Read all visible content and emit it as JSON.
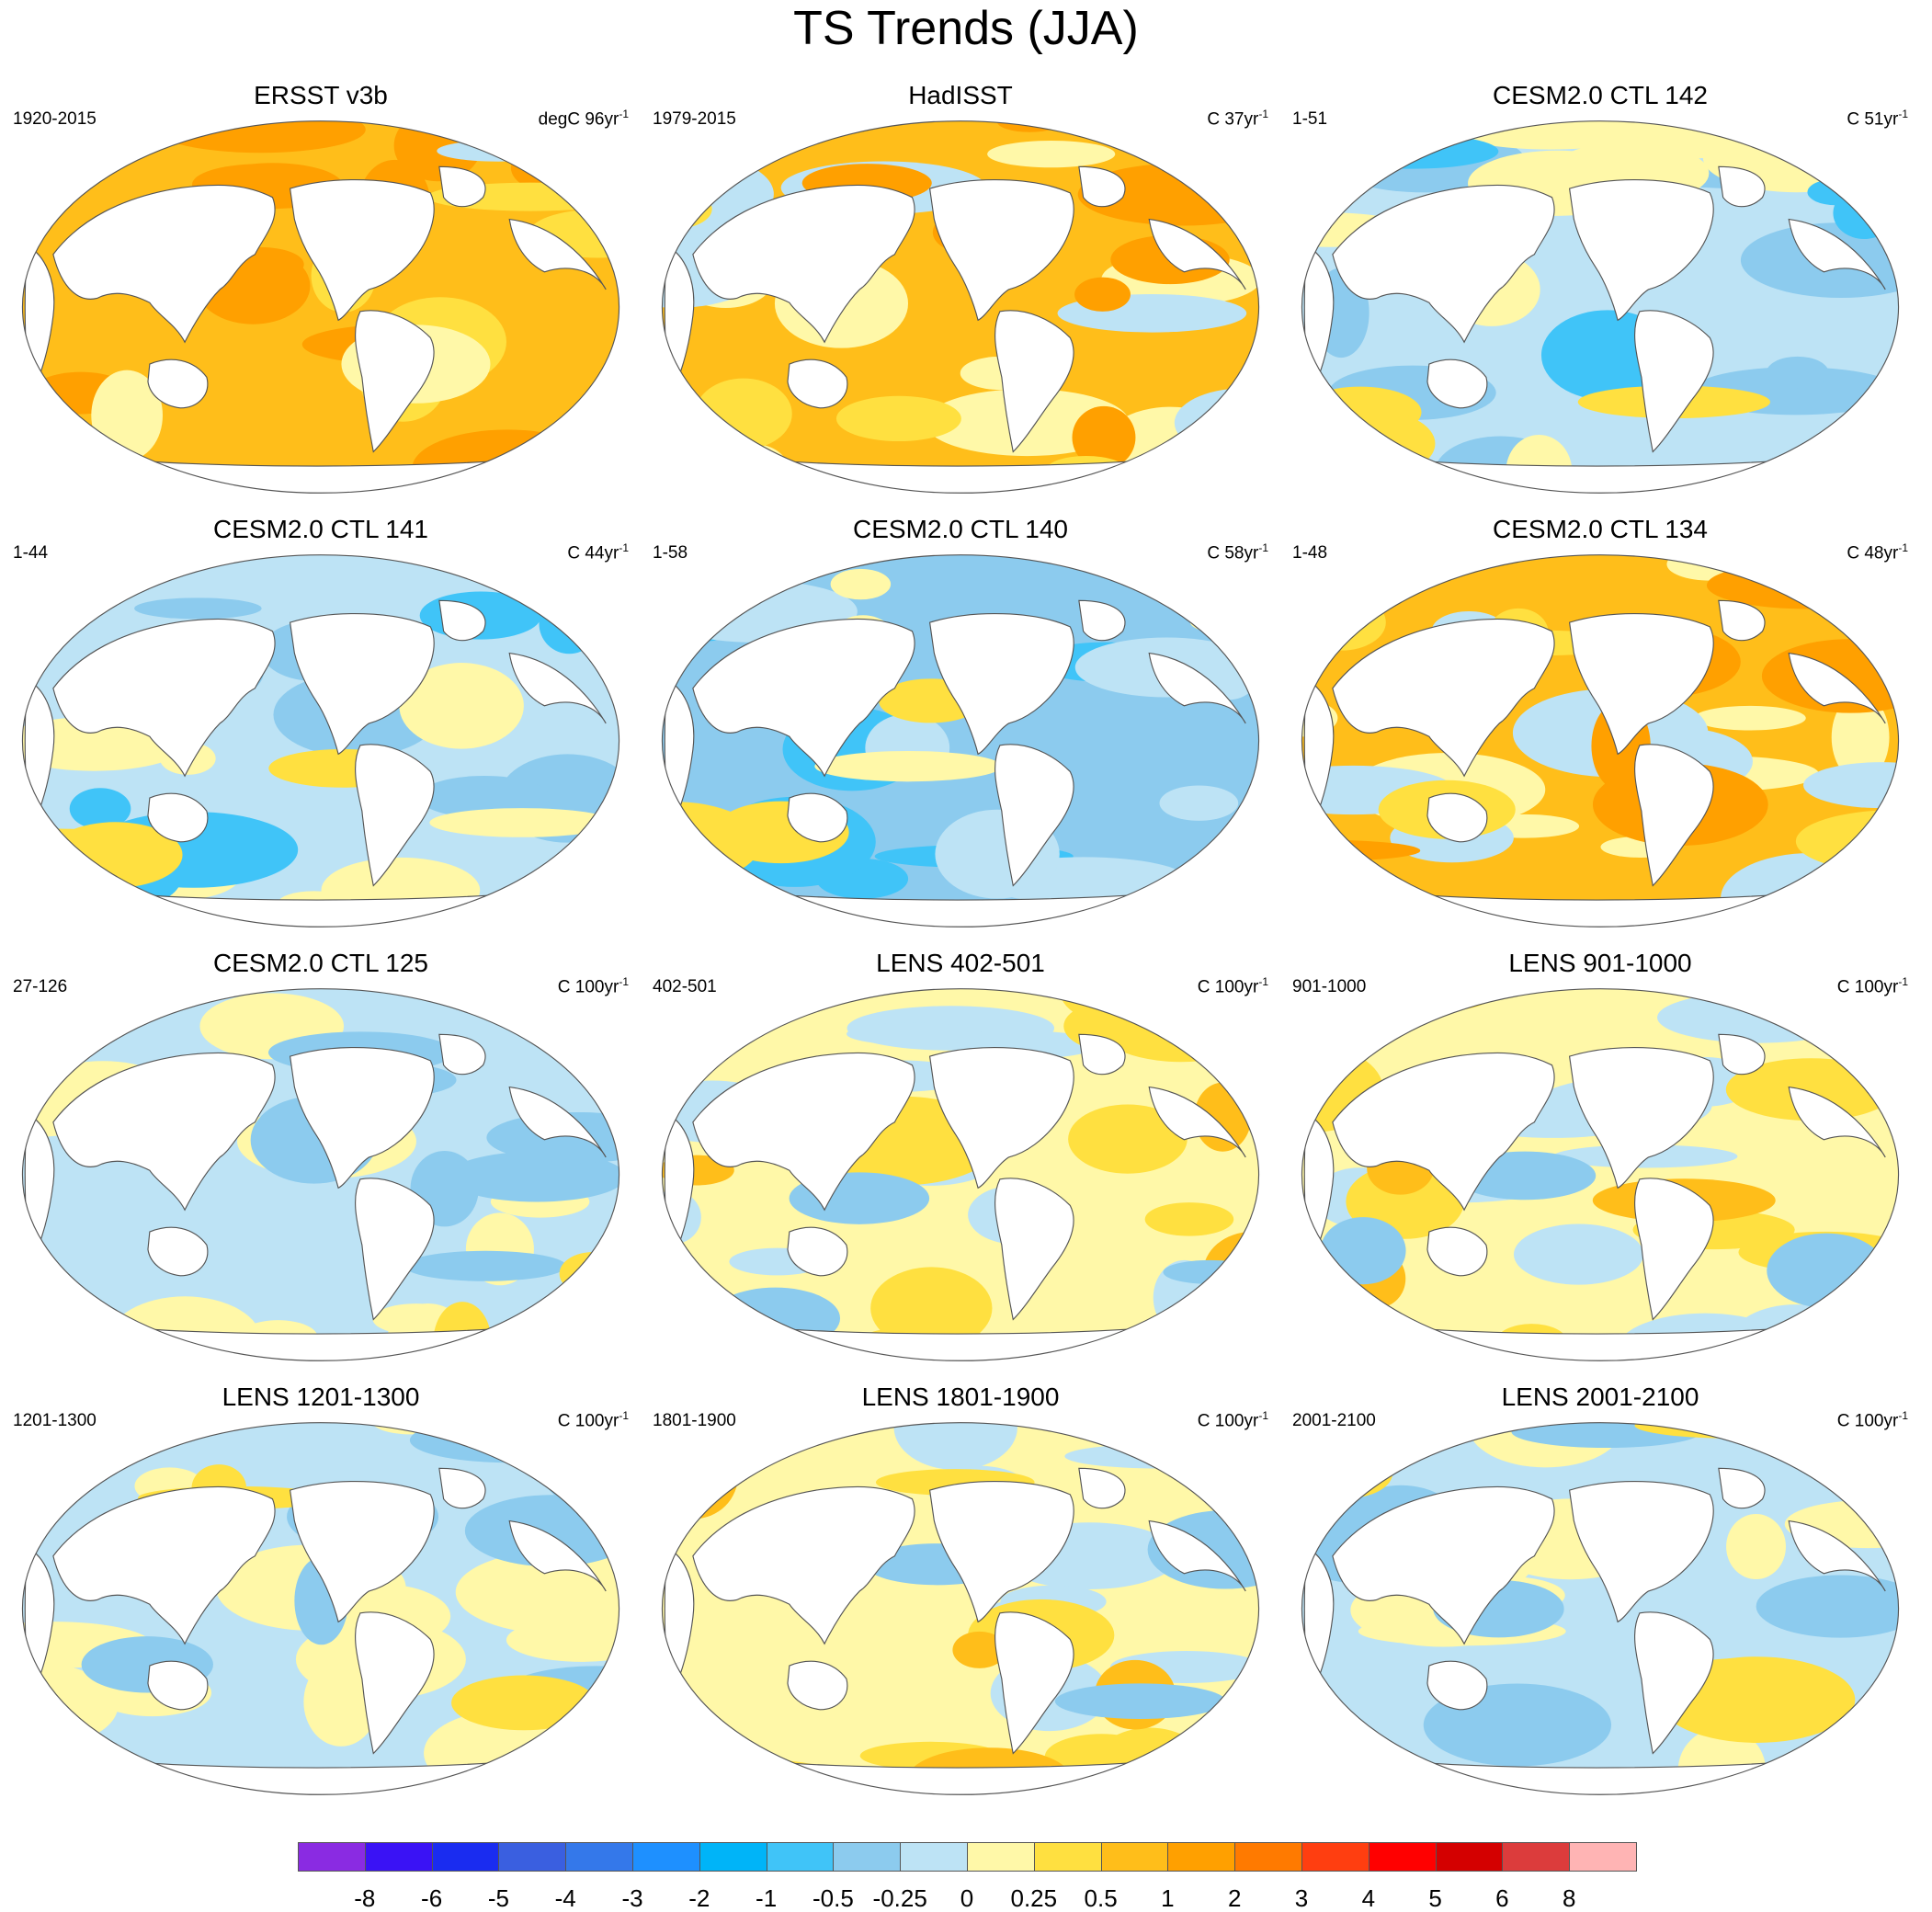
{
  "figure": {
    "title": "TS Trends (JJA)"
  },
  "panels": [
    {
      "title": "ERSST v3b",
      "period": "1920-2015",
      "units": "degC 96yr",
      "exp": "-1",
      "tone": "warm_strong"
    },
    {
      "title": "HadISST",
      "period": "1979-2015",
      "units": "C 37yr",
      "exp": "-1",
      "tone": "warm_mixed"
    },
    {
      "title": "CESM2.0 CTL 142",
      "period": "1-51",
      "units": "C 51yr",
      "exp": "-1",
      "tone": "cool"
    },
    {
      "title": "CESM2.0 CTL 141",
      "period": "1-44",
      "units": "C 44yr",
      "exp": "-1",
      "tone": "cool"
    },
    {
      "title": "CESM2.0 CTL 140",
      "period": "1-58",
      "units": "C 58yr",
      "exp": "-1",
      "tone": "cool_strong"
    },
    {
      "title": "CESM2.0 CTL 134",
      "period": "1-48",
      "units": "C 48yr",
      "exp": "-1",
      "tone": "warm_mixed"
    },
    {
      "title": "CESM2.0 CTL 125",
      "period": "27-126",
      "units": "C 100yr",
      "exp": "-1",
      "tone": "neutral"
    },
    {
      "title": "LENS 402-501",
      "period": "402-501",
      "units": "C 100yr",
      "exp": "-1",
      "tone": "neutral_warm"
    },
    {
      "title": "LENS 901-1000",
      "period": "901-1000",
      "units": "C 100yr",
      "exp": "-1",
      "tone": "neutral_warm"
    },
    {
      "title": "LENS 1201-1300",
      "period": "1201-1300",
      "units": "C 100yr",
      "exp": "-1",
      "tone": "neutral"
    },
    {
      "title": "LENS 1801-1900",
      "period": "1801-1900",
      "units": "C 100yr",
      "exp": "-1",
      "tone": "neutral_warm"
    },
    {
      "title": "LENS 2001-2100",
      "period": "2001-2100",
      "units": "C 100yr",
      "exp": "-1",
      "tone": "neutral"
    }
  ],
  "colorbar": {
    "colors": [
      "#8a2be2",
      "#3a12f5",
      "#1a2cf0",
      "#3a5fe0",
      "#3478ea",
      "#1e90ff",
      "#00b4f8",
      "#40c4f8",
      "#8ccbee",
      "#bde3f5",
      "#fff8a8",
      "#ffe040",
      "#ffbe1a",
      "#ffa000",
      "#ff7a00",
      "#ff3e10",
      "#ff0000",
      "#d40000",
      "#dc3c3c",
      "#ffb4b4"
    ],
    "labels": [
      "-8",
      "-6",
      "-5",
      "-4",
      "-3",
      "-2",
      "-1",
      "-0.5",
      "-0.25",
      "0",
      "0.25",
      "0.5",
      "1",
      "2",
      "3",
      "4",
      "5",
      "6",
      "8"
    ]
  }
}
